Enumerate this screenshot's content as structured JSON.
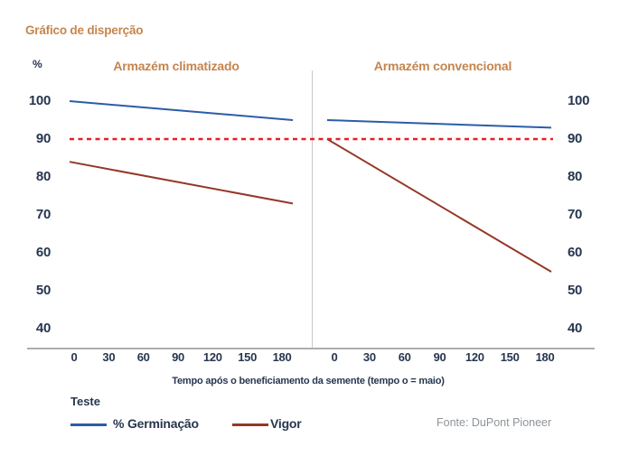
{
  "title": "Gráfico de disperção",
  "colors": {
    "header_orange": "#c5854e",
    "text_navy": "#27364f",
    "germination_blue": "#2b5da7",
    "vigor_red": "#953726",
    "reference_red": "#ec1c24",
    "axis_gray": "#adadad",
    "source_gray": "#8e9498"
  },
  "y_axis": {
    "unit_label": "%",
    "ticks": [
      100,
      90,
      80,
      70,
      60,
      50,
      40
    ]
  },
  "x_axis": {
    "ticks": [
      0,
      30,
      60,
      90,
      120,
      150,
      180
    ],
    "title": "Tempo após o beneficiamento da semente (tempo o = maio)"
  },
  "panels": [
    {
      "label": "Armazém climatizado"
    },
    {
      "label": "Armazém convencional"
    }
  ],
  "legend": {
    "title": "Teste",
    "items": [
      {
        "label": "% Germinação",
        "color": "#2b5da7"
      },
      {
        "label": "Vigor",
        "color": "#953726"
      }
    ]
  },
  "source": "Fonte: DuPont Pioneer",
  "chart_data": {
    "type": "line",
    "title": "Gráfico de disperção",
    "xlabel": "Tempo após o beneficiamento da semente (tempo o = maio)",
    "ylabel": "%",
    "ylim": [
      40,
      100
    ],
    "x_ticks_per_panel": [
      0,
      30,
      60,
      90,
      120,
      150,
      180
    ],
    "grid": false,
    "legend_position": "bottom-left",
    "reference_line": {
      "value": 90,
      "style": "dashed",
      "color": "#ec1c24"
    },
    "panels": [
      {
        "label": "Armazém climatizado",
        "series": [
          {
            "name": "% Germinação",
            "color": "#2b5da7",
            "x": [
              0,
              180
            ],
            "values": [
              100,
              95
            ]
          },
          {
            "name": "Vigor",
            "color": "#953726",
            "x": [
              0,
              180
            ],
            "values": [
              84,
              73
            ]
          }
        ]
      },
      {
        "label": "Armazém convencional",
        "series": [
          {
            "name": "% Germinação",
            "color": "#2b5da7",
            "x": [
              0,
              180
            ],
            "values": [
              95,
              93
            ]
          },
          {
            "name": "Vigor",
            "color": "#953726",
            "x": [
              0,
              180
            ],
            "values": [
              90,
              55
            ]
          }
        ]
      }
    ]
  }
}
